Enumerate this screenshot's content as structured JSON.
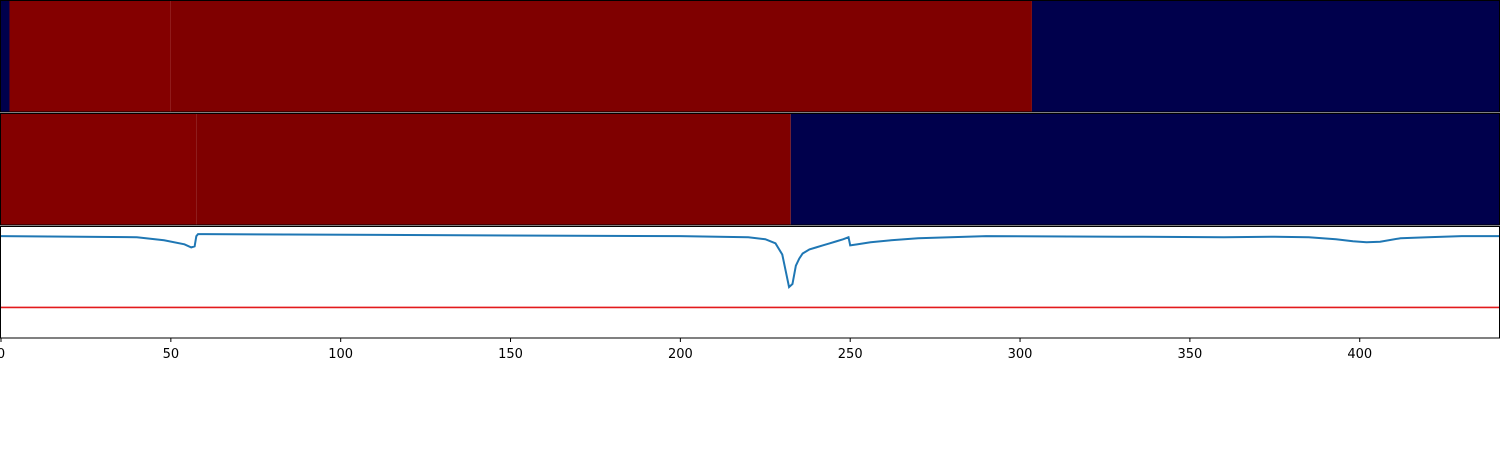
{
  "chart_data": {
    "type": "heatmap",
    "title": "",
    "xlabel": "",
    "ylabel": "",
    "xlim": [
      0,
      441
    ],
    "xticks": [
      0,
      50,
      100,
      150,
      200,
      250,
      300,
      350,
      400
    ],
    "tick_labels": [
      "0",
      "50",
      "100",
      "150",
      "200",
      "250",
      "300",
      "350",
      "400"
    ],
    "colors": {
      "dark_red": "#7f0000",
      "red": "#840000",
      "navy": "#00004c",
      "line": "#1f77b4",
      "threshold": "#e31a1c",
      "axes": "#000000"
    },
    "heatmap_rows": [
      {
        "row": 1,
        "segments": [
          {
            "x0": 0,
            "x1": 2.5,
            "color": "navy"
          },
          {
            "x0": 2.5,
            "x1": 50,
            "color": "red"
          },
          {
            "x0": 50,
            "x1": 303.5,
            "color": "dark_red"
          },
          {
            "x0": 303.5,
            "x1": 441,
            "color": "navy"
          }
        ]
      },
      {
        "row": 2,
        "segments": [
          {
            "x0": 0,
            "x1": 57.5,
            "color": "red"
          },
          {
            "x0": 57.5,
            "x1": 232.5,
            "color": "dark_red"
          },
          {
            "x0": 232.5,
            "x1": 441,
            "color": "navy"
          }
        ]
      }
    ],
    "line_series": {
      "ylim": [
        -1,
        0.1
      ],
      "threshold": -0.7,
      "x": [
        0,
        40,
        48,
        54,
        56,
        57,
        57.5,
        58,
        60,
        200,
        220,
        225,
        228,
        230,
        231,
        232,
        233,
        234,
        235,
        236,
        238,
        240,
        242,
        244,
        246,
        248,
        249.5,
        250,
        252,
        256,
        262,
        270,
        290,
        330,
        360,
        375,
        385,
        393,
        398,
        402,
        406,
        412,
        420,
        430,
        441
      ],
      "y": [
        0,
        -0.01,
        -0.04,
        -0.08,
        -0.11,
        -0.1,
        0,
        0.02,
        0.02,
        0,
        -0.01,
        -0.03,
        -0.07,
        -0.18,
        -0.34,
        -0.5,
        -0.47,
        -0.29,
        -0.22,
        -0.17,
        -0.13,
        -0.11,
        -0.09,
        -0.07,
        -0.05,
        -0.03,
        -0.01,
        -0.09,
        -0.08,
        -0.06,
        -0.04,
        -0.02,
        0,
        -0.005,
        -0.01,
        -0.005,
        -0.01,
        -0.03,
        -0.05,
        -0.06,
        -0.055,
        -0.02,
        -0.01,
        0,
        0
      ]
    }
  }
}
